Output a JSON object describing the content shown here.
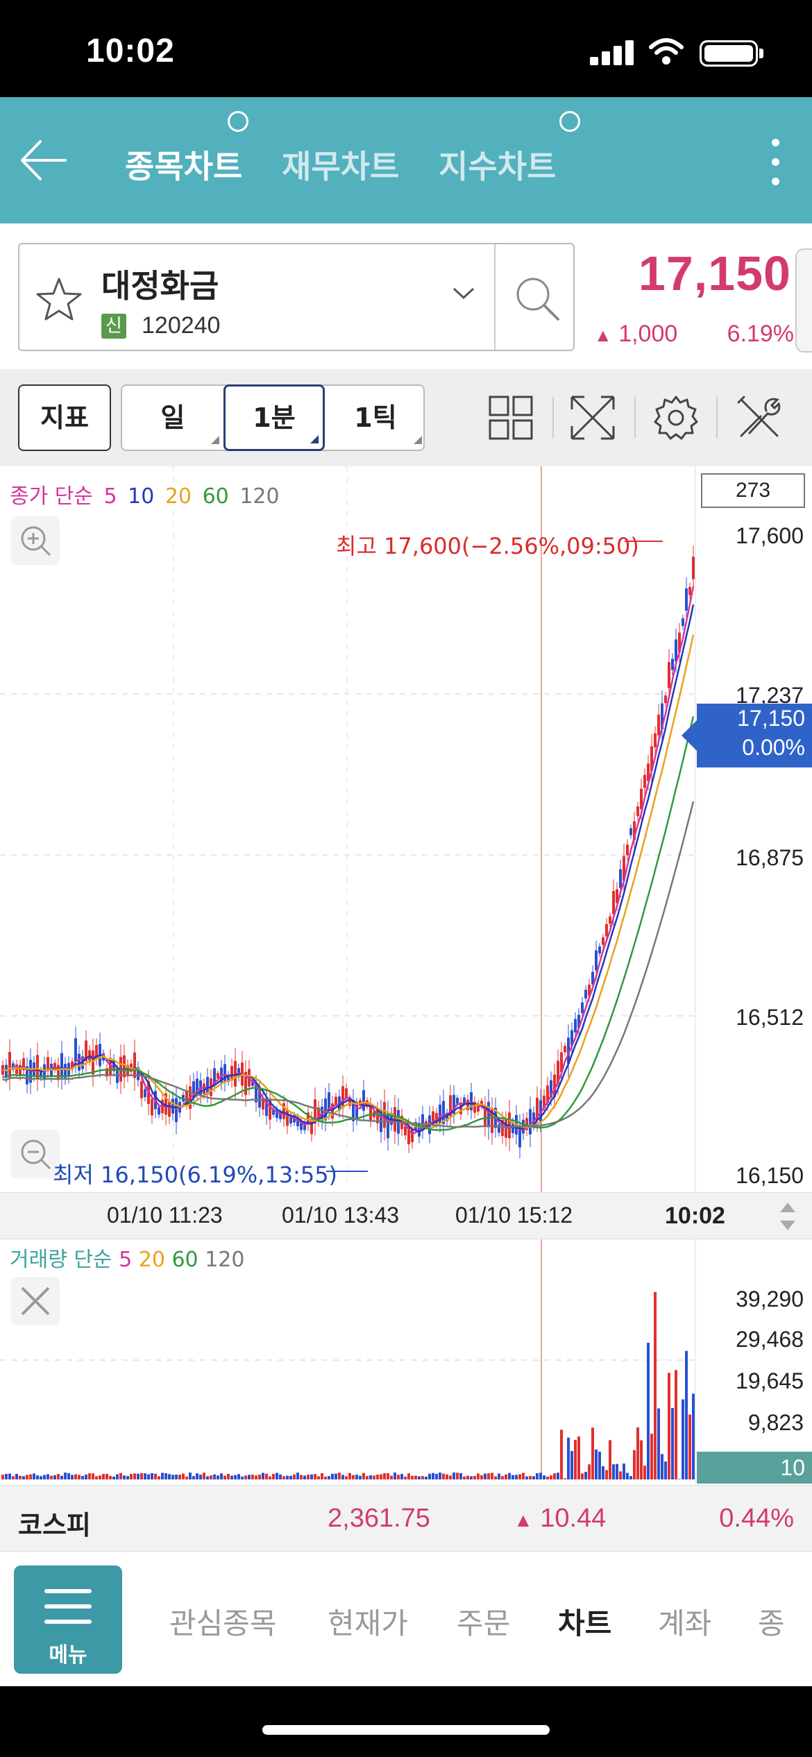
{
  "status": {
    "time": "10:02"
  },
  "nav": {
    "tabs": [
      {
        "label": "종목차트",
        "active": true
      },
      {
        "label": "재무차트",
        "active": false
      },
      {
        "label": "지수차트",
        "active": false
      }
    ]
  },
  "stock": {
    "name": "대정화금",
    "badge": "신",
    "code": "120240",
    "price": "17,150",
    "change": "1,000",
    "change_symbol": "▲",
    "rate": "6.19%"
  },
  "toolbar": {
    "indicator_label": "지표",
    "periods": [
      "일",
      "1분",
      "1틱"
    ],
    "selected_period": "1분"
  },
  "chart": {
    "legend": {
      "title": "종가 단순",
      "periods": [
        {
          "label": "5",
          "color": "#d6339c"
        },
        {
          "label": "10",
          "color": "#2239b8"
        },
        {
          "label": "20",
          "color": "#e8a21a"
        },
        {
          "label": "60",
          "color": "#2f9a3b"
        },
        {
          "label": "120",
          "color": "#777777"
        }
      ]
    },
    "count": "273",
    "y_labels": [
      "17,600",
      "17,237",
      "16,875",
      "16,512",
      "16,150"
    ],
    "current_price": "17,150",
    "current_rate": "0.00%",
    "high_label": "최고 17,600(−2.56%,09:50)",
    "low_label": "최저 16,150(6.19%,13:55)",
    "time_labels": [
      "01/10 11:23",
      "01/10 13:43",
      "01/10 15:12"
    ],
    "time_now": "10:02",
    "up_color": "#e0302e",
    "down_color": "#2a4fd1"
  },
  "volume": {
    "legend": {
      "title": "거래량 단순",
      "periods": [
        {
          "label": "5",
          "color": "#d6339c"
        },
        {
          "label": "20",
          "color": "#e8a21a"
        },
        {
          "label": "60",
          "color": "#2f9a3b"
        },
        {
          "label": "120",
          "color": "#777777"
        }
      ]
    },
    "y_labels": [
      "39,290",
      "29,468",
      "19,645",
      "9,823"
    ],
    "current": "10"
  },
  "index": {
    "name": "코스피",
    "value": "2,361.75",
    "change_symbol": "▲",
    "change": "10.44",
    "rate": "0.44%"
  },
  "bottom_nav": {
    "menu_label": "메뉴",
    "items": [
      {
        "label": "관심종목",
        "active": false
      },
      {
        "label": "현재가",
        "active": false
      },
      {
        "label": "주문",
        "active": false
      },
      {
        "label": "차트",
        "active": true
      },
      {
        "label": "계좌",
        "active": false
      },
      {
        "label": "종",
        "active": false
      }
    ]
  }
}
